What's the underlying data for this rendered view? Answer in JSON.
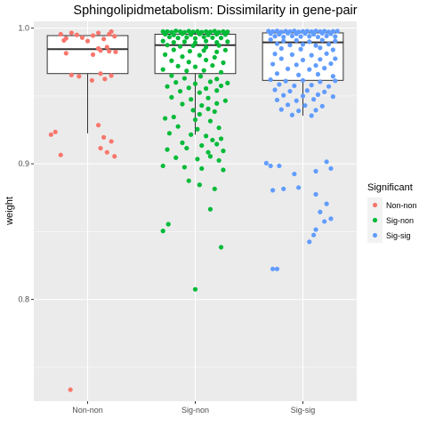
{
  "chart_data": {
    "type": "box",
    "title": "Sphingolipidmetabolism: Dissimilarity in gene-pair",
    "xlabel": "",
    "ylabel": "weight",
    "ylim": [
      0.725,
      1.005
    ],
    "yticks": [
      0.8,
      0.9,
      1.0
    ],
    "ytick_labels": [
      "0.8",
      "0.9",
      "1.0"
    ],
    "categories": [
      "Non-non",
      "Sig-non",
      "Sig-sig"
    ],
    "legend": {
      "title": "Significant",
      "position": "right",
      "entries": [
        "Non-non",
        "Sig-non",
        "Sig-sig"
      ]
    },
    "colors": {
      "Non-non": "#f8766d",
      "Sig-non": "#00ba38",
      "Sig-sig": "#619cff",
      "panel": "#ebebeb",
      "grid": "#ffffff"
    },
    "boxes": [
      {
        "category": "Non-non",
        "q1": 0.9665,
        "median": 0.9845,
        "q3": 0.9945,
        "whisker_low": 0.9225,
        "whisker_high": 0.9945
      },
      {
        "category": "Sig-non",
        "q1": 0.9665,
        "median": 0.9875,
        "q3": 0.9955,
        "whisker_low": 0.9215,
        "whisker_high": 0.9975
      },
      {
        "category": "Sig-sig",
        "q1": 0.9615,
        "median": 0.9895,
        "q3": 0.9965,
        "whisker_low": 0.9355,
        "whisker_high": 0.9975
      }
    ],
    "series": [
      {
        "name": "Non-non",
        "points": [
          [
            -0.25,
            0.9955
          ],
          [
            -0.2,
            0.9925
          ],
          [
            -0.15,
            0.9965
          ],
          [
            -0.1,
            0.995
          ],
          [
            -0.05,
            0.993
          ],
          [
            0.05,
            0.9945
          ],
          [
            0.1,
            0.9965
          ],
          [
            0.15,
            0.992
          ],
          [
            0.2,
            0.9955
          ],
          [
            0.25,
            0.994
          ],
          [
            -0.22,
            0.991
          ],
          [
            0.0,
            0.9905
          ],
          [
            0.22,
            0.9975
          ],
          [
            0.18,
            0.986
          ],
          [
            0.1,
            0.985
          ],
          [
            0.2,
            0.983
          ],
          [
            0.26,
            0.9825
          ],
          [
            0.05,
            0.9805
          ],
          [
            -0.2,
            0.9815
          ],
          [
            0.12,
            0.9835
          ],
          [
            -0.15,
            0.9655
          ],
          [
            -0.08,
            0.9645
          ],
          [
            0.12,
            0.9665
          ],
          [
            0.22,
            0.965
          ],
          [
            0.16,
            0.9625
          ],
          [
            0.04,
            0.9615
          ],
          [
            -0.3,
            0.9235
          ],
          [
            -0.34,
            0.9215
          ],
          [
            0.1,
            0.9285
          ],
          [
            0.15,
            0.9195
          ],
          [
            0.22,
            0.9165
          ],
          [
            0.12,
            0.9115
          ],
          [
            0.18,
            0.9085
          ],
          [
            0.25,
            0.9055
          ],
          [
            -0.25,
            0.9065
          ],
          [
            -0.16,
            0.7335
          ]
        ]
      },
      {
        "name": "Sig-non",
        "points": [
          [
            -0.3,
            0.9975
          ],
          [
            -0.26,
            0.9975
          ],
          [
            -0.22,
            0.997
          ],
          [
            -0.18,
            0.998
          ],
          [
            -0.14,
            0.9975
          ],
          [
            -0.1,
            0.997
          ],
          [
            -0.06,
            0.9978
          ],
          [
            -0.02,
            0.9972
          ],
          [
            0.02,
            0.9976
          ],
          [
            0.06,
            0.997
          ],
          [
            0.1,
            0.9975
          ],
          [
            0.14,
            0.9972
          ],
          [
            0.18,
            0.9978
          ],
          [
            0.22,
            0.997
          ],
          [
            0.26,
            0.9975
          ],
          [
            0.3,
            0.9972
          ],
          [
            -0.28,
            0.9955
          ],
          [
            -0.2,
            0.995
          ],
          [
            -0.12,
            0.9958
          ],
          [
            -0.04,
            0.9952
          ],
          [
            0.04,
            0.9956
          ],
          [
            0.12,
            0.995
          ],
          [
            0.2,
            0.9955
          ],
          [
            0.28,
            0.9952
          ],
          [
            -0.24,
            0.9935
          ],
          [
            -0.16,
            0.9928
          ],
          [
            -0.08,
            0.9932
          ],
          [
            0.0,
            0.9925
          ],
          [
            0.08,
            0.9935
          ],
          [
            0.16,
            0.993
          ],
          [
            0.24,
            0.9928
          ],
          [
            -0.3,
            0.9905
          ],
          [
            -0.2,
            0.9895
          ],
          [
            -0.1,
            0.99
          ],
          [
            0.0,
            0.9892
          ],
          [
            0.1,
            0.9905
          ],
          [
            0.2,
            0.9895
          ],
          [
            0.3,
            0.99
          ],
          [
            -0.26,
            0.9875
          ],
          [
            -0.14,
            0.9865
          ],
          [
            -0.02,
            0.987
          ],
          [
            0.1,
            0.986
          ],
          [
            0.22,
            0.9872
          ],
          [
            -0.2,
            0.984
          ],
          [
            -0.05,
            0.983
          ],
          [
            0.08,
            0.9835
          ],
          [
            0.2,
            0.9825
          ],
          [
            0.28,
            0.9838
          ],
          [
            -0.28,
            0.9805
          ],
          [
            -0.12,
            0.979
          ],
          [
            0.04,
            0.98
          ],
          [
            0.18,
            0.9785
          ],
          [
            -0.22,
            0.976
          ],
          [
            -0.06,
            0.975
          ],
          [
            0.1,
            0.9765
          ],
          [
            0.26,
            0.9745
          ],
          [
            -0.16,
            0.972
          ],
          [
            0.0,
            0.9715
          ],
          [
            0.16,
            0.9725
          ],
          [
            -0.3,
            0.9695
          ],
          [
            -0.08,
            0.9685
          ],
          [
            0.08,
            0.9688
          ],
          [
            0.24,
            0.9675
          ],
          [
            -0.22,
            0.965
          ],
          [
            -0.1,
            0.963
          ],
          [
            0.05,
            0.9645
          ],
          [
            0.2,
            0.9625
          ],
          [
            -0.18,
            0.96
          ],
          [
            0.0,
            0.959
          ],
          [
            0.14,
            0.9605
          ],
          [
            0.3,
            0.9595
          ],
          [
            -0.26,
            0.957
          ],
          [
            -0.06,
            0.956
          ],
          [
            0.1,
            0.9555
          ],
          [
            0.24,
            0.9575
          ],
          [
            -0.14,
            0.9535
          ],
          [
            0.04,
            0.9525
          ],
          [
            0.2,
            0.954
          ],
          [
            -0.22,
            0.949
          ],
          [
            -0.04,
            0.9475
          ],
          [
            0.12,
            0.9485
          ],
          [
            0.28,
            0.9465
          ],
          [
            -0.12,
            0.944
          ],
          [
            0.06,
            0.943
          ],
          [
            0.2,
            0.9445
          ],
          [
            -0.02,
            0.9395
          ],
          [
            0.12,
            0.9405
          ],
          [
            0.18,
            0.9385
          ],
          [
            0.04,
            0.9365
          ],
          [
            -0.28,
            0.9335
          ],
          [
            -0.2,
            0.9345
          ],
          [
            0.0,
            0.9325
          ],
          [
            0.14,
            0.9315
          ],
          [
            -0.16,
            0.9275
          ],
          [
            0.02,
            0.9255
          ],
          [
            0.22,
            0.9265
          ],
          [
            -0.24,
            0.9225
          ],
          [
            -0.04,
            0.9215
          ],
          [
            0.1,
            0.9205
          ],
          [
            0.16,
            0.9175
          ],
          [
            0.24,
            0.9185
          ],
          [
            -0.12,
            0.9155
          ],
          [
            0.06,
            0.9135
          ],
          [
            0.2,
            0.9145
          ],
          [
            -0.26,
            0.9105
          ],
          [
            -0.08,
            0.9115
          ],
          [
            0.12,
            0.9085
          ],
          [
            0.26,
            0.9095
          ],
          [
            -0.18,
            0.9045
          ],
          [
            0.02,
            0.9035
          ],
          [
            0.14,
            0.9055
          ],
          [
            0.22,
            0.9025
          ],
          [
            -0.3,
            0.8985
          ],
          [
            -0.1,
            0.8975
          ],
          [
            0.06,
            0.8965
          ],
          [
            0.26,
            0.8955
          ],
          [
            -0.06,
            0.8875
          ],
          [
            0.04,
            0.8845
          ],
          [
            0.18,
            0.8815
          ],
          [
            0.14,
            0.8665
          ],
          [
            -0.25,
            0.8555
          ],
          [
            -0.3,
            0.8505
          ],
          [
            0.24,
            0.8385
          ],
          [
            0.0,
            0.8075
          ]
        ]
      },
      {
        "name": "Sig-sig",
        "points": [
          [
            -0.32,
            0.9978
          ],
          [
            -0.28,
            0.9975
          ],
          [
            -0.24,
            0.998
          ],
          [
            -0.2,
            0.9972
          ],
          [
            -0.16,
            0.9978
          ],
          [
            -0.12,
            0.9975
          ],
          [
            -0.08,
            0.998
          ],
          [
            -0.04,
            0.9972
          ],
          [
            0.0,
            0.9976
          ],
          [
            0.04,
            0.9978
          ],
          [
            0.08,
            0.9974
          ],
          [
            0.12,
            0.998
          ],
          [
            0.16,
            0.9975
          ],
          [
            0.2,
            0.9978
          ],
          [
            0.24,
            0.9972
          ],
          [
            0.28,
            0.9976
          ],
          [
            0.32,
            0.9978
          ],
          [
            -0.3,
            0.996
          ],
          [
            -0.22,
            0.9955
          ],
          [
            -0.14,
            0.9962
          ],
          [
            -0.06,
            0.9958
          ],
          [
            0.02,
            0.996
          ],
          [
            0.1,
            0.9955
          ],
          [
            0.18,
            0.9962
          ],
          [
            0.26,
            0.9958
          ],
          [
            -0.26,
            0.994
          ],
          [
            -0.18,
            0.9935
          ],
          [
            -0.1,
            0.9942
          ],
          [
            -0.02,
            0.9938
          ],
          [
            0.06,
            0.994
          ],
          [
            0.14,
            0.9935
          ],
          [
            0.22,
            0.9942
          ],
          [
            0.3,
            0.9938
          ],
          [
            -0.3,
            0.9915
          ],
          [
            -0.18,
            0.9905
          ],
          [
            -0.06,
            0.991
          ],
          [
            0.06,
            0.99
          ],
          [
            0.18,
            0.9912
          ],
          [
            0.3,
            0.9905
          ],
          [
            -0.24,
            0.9885
          ],
          [
            -0.12,
            0.9875
          ],
          [
            0.0,
            0.988
          ],
          [
            0.12,
            0.9872
          ],
          [
            0.24,
            0.9882
          ],
          [
            -0.2,
            0.985
          ],
          [
            -0.02,
            0.9845
          ],
          [
            0.16,
            0.9855
          ],
          [
            0.28,
            0.984
          ],
          [
            -0.26,
            0.981
          ],
          [
            -0.1,
            0.9805
          ],
          [
            0.08,
            0.98
          ],
          [
            0.22,
            0.9812
          ],
          [
            -0.2,
            0.9775
          ],
          [
            0.0,
            0.9765
          ],
          [
            0.16,
            0.977
          ],
          [
            0.3,
            0.9775
          ],
          [
            -0.28,
            0.9735
          ],
          [
            -0.06,
            0.973
          ],
          [
            0.12,
            0.9725
          ],
          [
            0.26,
            0.9738
          ],
          [
            -0.14,
            0.97
          ],
          [
            0.06,
            0.9695
          ],
          [
            0.2,
            0.9705
          ],
          [
            -0.24,
            0.9665
          ],
          [
            -0.04,
            0.9655
          ],
          [
            0.14,
            0.966
          ],
          [
            0.28,
            0.9645
          ],
          [
            -0.3,
            0.962
          ],
          [
            -0.16,
            0.961
          ],
          [
            0.0,
            0.9615
          ],
          [
            0.16,
            0.9605
          ],
          [
            0.3,
            0.9612
          ],
          [
            -0.22,
            0.9585
          ],
          [
            -0.08,
            0.9575
          ],
          [
            0.08,
            0.958
          ],
          [
            0.24,
            0.957
          ],
          [
            -0.26,
            0.9545
          ],
          [
            -0.12,
            0.9535
          ],
          [
            0.04,
            0.954
          ],
          [
            0.2,
            0.953
          ],
          [
            -0.18,
            0.9505
          ],
          [
            0.0,
            0.95
          ],
          [
            0.14,
            0.951
          ],
          [
            0.28,
            0.9495
          ],
          [
            -0.24,
            0.947
          ],
          [
            -0.06,
            0.9465
          ],
          [
            0.1,
            0.9475
          ],
          [
            -0.14,
            0.9435
          ],
          [
            0.02,
            0.943
          ],
          [
            0.18,
            0.9425
          ],
          [
            -0.2,
            0.94
          ],
          [
            -0.04,
            0.939
          ],
          [
            0.12,
            0.9395
          ],
          [
            -0.1,
            0.936
          ],
          [
            0.08,
            0.9355
          ],
          [
            -0.34,
            0.9005
          ],
          [
            -0.3,
            0.8985
          ],
          [
            0.22,
            0.9015
          ],
          [
            0.26,
            0.8965
          ],
          [
            0.12,
            0.8945
          ],
          [
            -0.22,
            0.8985
          ],
          [
            -0.08,
            0.8925
          ],
          [
            -0.28,
            0.8805
          ],
          [
            -0.18,
            0.8815
          ],
          [
            -0.04,
            0.8825
          ],
          [
            0.12,
            0.8775
          ],
          [
            0.22,
            0.8705
          ],
          [
            0.16,
            0.8645
          ],
          [
            0.26,
            0.8595
          ],
          [
            0.2,
            0.8575
          ],
          [
            0.12,
            0.8515
          ],
          [
            0.1,
            0.8475
          ],
          [
            0.06,
            0.8425
          ],
          [
            -0.28,
            0.8225
          ],
          [
            -0.24,
            0.8225
          ]
        ]
      }
    ]
  }
}
